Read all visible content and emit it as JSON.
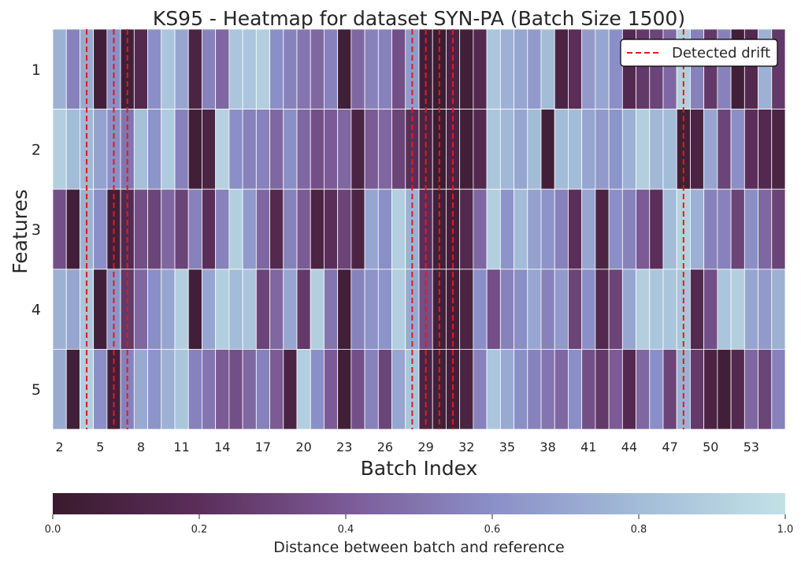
{
  "chart_data": {
    "type": "heatmap",
    "title": "KS95 - Heatmap for dataset SYN-PA (Batch Size 1500)",
    "xlabel": "Batch Index",
    "ylabel": "Features",
    "x_tick_labels": [
      "2",
      "5",
      "8",
      "11",
      "14",
      "17",
      "20",
      "23",
      "26",
      "29",
      "32",
      "35",
      "38",
      "41",
      "44",
      "47",
      "50",
      "53"
    ],
    "x_tick_start_index": 2,
    "x_tick_step": 3,
    "n_batches": 54,
    "rows": [
      "1",
      "2",
      "3",
      "4",
      "5"
    ],
    "values": [
      [
        0.75,
        0.55,
        0.72,
        0.05,
        0.6,
        0.05,
        0.15,
        0.6,
        0.85,
        0.7,
        0.1,
        0.55,
        0.45,
        0.85,
        0.85,
        0.9,
        0.6,
        0.55,
        0.5,
        0.45,
        0.55,
        0.05,
        0.45,
        0.55,
        0.55,
        0.35,
        0.65,
        0.05,
        0.02,
        0.1,
        0.05,
        0.15,
        0.85,
        0.75,
        0.7,
        0.65,
        0.8,
        0.1,
        0.2,
        0.65,
        0.7,
        0.6,
        0.15,
        0.25,
        0.3,
        0.45,
        0.9,
        0.55,
        0.25,
        0.55,
        0.05,
        0.15,
        0.75,
        0.25
      ],
      [
        0.9,
        0.8,
        0.78,
        0.68,
        0.6,
        0.5,
        0.82,
        0.62,
        0.88,
        0.55,
        0.05,
        0.1,
        0.92,
        0.6,
        0.55,
        0.55,
        0.45,
        0.6,
        0.45,
        0.35,
        0.4,
        0.45,
        0.1,
        0.4,
        0.45,
        0.3,
        0.2,
        0.1,
        0.02,
        0.1,
        0.05,
        0.15,
        0.85,
        0.78,
        0.7,
        0.8,
        0.05,
        0.8,
        0.8,
        0.7,
        0.65,
        0.62,
        0.75,
        0.9,
        0.78,
        0.8,
        0.05,
        0.1,
        0.7,
        0.3,
        0.6,
        0.2,
        0.15,
        0.1
      ],
      [
        0.35,
        0.05,
        0.75,
        0.6,
        0.05,
        0.15,
        0.35,
        0.3,
        0.45,
        0.3,
        0.55,
        0.2,
        0.55,
        0.9,
        0.65,
        0.45,
        0.15,
        0.55,
        0.4,
        0.1,
        0.2,
        0.3,
        0.1,
        0.7,
        0.6,
        0.9,
        0.75,
        0.2,
        0.05,
        0.05,
        0.15,
        0.45,
        0.9,
        0.62,
        0.8,
        0.68,
        0.62,
        0.55,
        0.2,
        0.7,
        0.1,
        0.6,
        0.55,
        0.4,
        0.2,
        0.8,
        0.92,
        0.75,
        0.55,
        0.55,
        0.3,
        0.6,
        0.45,
        0.3
      ],
      [
        0.75,
        0.7,
        0.85,
        0.05,
        0.62,
        0.25,
        0.45,
        0.6,
        0.7,
        0.9,
        0.05,
        0.7,
        0.9,
        0.8,
        0.85,
        0.3,
        0.45,
        0.7,
        0.25,
        0.9,
        0.5,
        0.05,
        0.55,
        0.62,
        0.62,
        0.9,
        0.72,
        0.35,
        0.05,
        0.05,
        0.1,
        0.6,
        0.35,
        0.55,
        0.6,
        0.7,
        0.55,
        0.65,
        0.3,
        0.6,
        0.15,
        0.3,
        0.7,
        0.9,
        0.85,
        0.85,
        0.85,
        0.15,
        0.35,
        0.85,
        0.9,
        0.7,
        0.65,
        0.75
      ],
      [
        0.72,
        0.05,
        0.9,
        0.6,
        0.05,
        0.55,
        0.72,
        0.62,
        0.75,
        0.85,
        0.55,
        0.5,
        0.4,
        0.35,
        0.45,
        0.55,
        0.4,
        0.1,
        0.9,
        0.6,
        0.4,
        0.05,
        0.35,
        0.55,
        0.3,
        0.7,
        0.85,
        0.1,
        0.05,
        0.05,
        0.1,
        0.55,
        0.85,
        0.72,
        0.6,
        0.55,
        0.5,
        0.45,
        0.6,
        0.35,
        0.25,
        0.4,
        0.15,
        0.45,
        0.6,
        0.3,
        0.75,
        0.25,
        0.1,
        0.05,
        0.15,
        0.45,
        0.3,
        0.55
      ]
    ],
    "drift_batches": [
      3,
      5,
      6,
      27,
      28,
      29,
      30,
      47
    ],
    "drift_color": "#e31a1c",
    "legend": {
      "label": "Detected drift",
      "position": "upper-right"
    },
    "colorbar": {
      "label": "Distance between batch and reference",
      "range": [
        0.0,
        1.0
      ],
      "tick_labels": [
        "0.0",
        "0.2",
        "0.4",
        "0.6",
        "0.8",
        "1.0"
      ],
      "colors": [
        "#3a1a2e",
        "#5b2e5a",
        "#7b5a96",
        "#8b8fc7",
        "#a3bcd8",
        "#c2e1e6"
      ]
    }
  }
}
